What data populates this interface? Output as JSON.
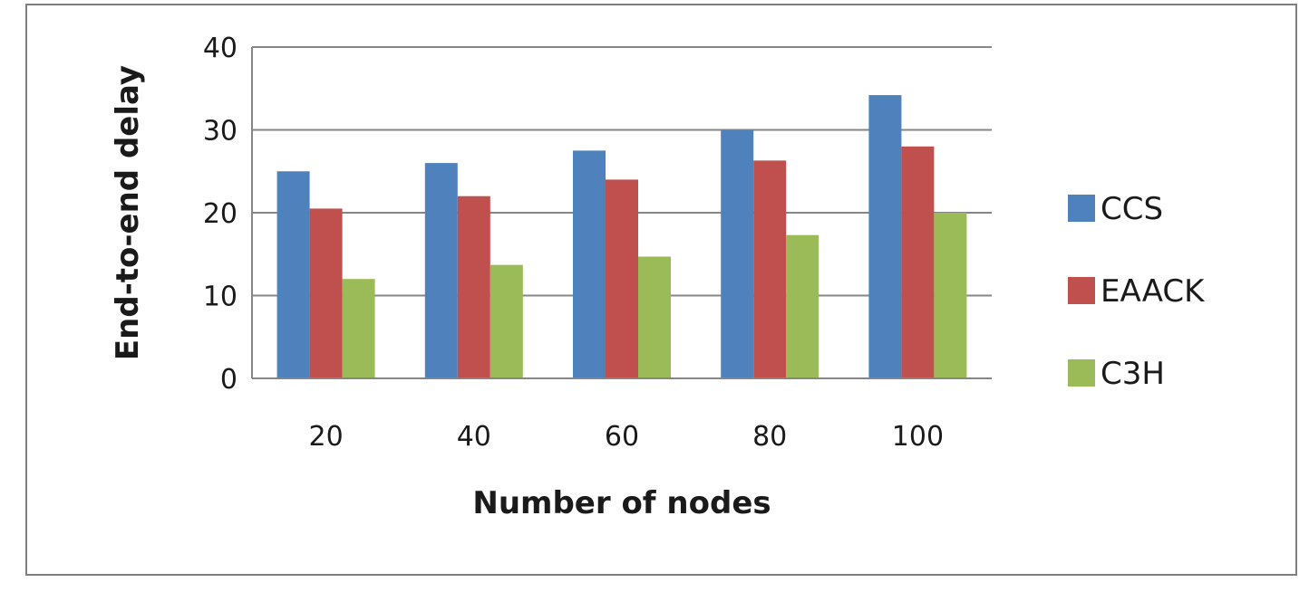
{
  "chart_data": {
    "type": "bar",
    "title": "",
    "xlabel": "Number of nodes",
    "ylabel": "End-to-end delay",
    "categories": [
      "20",
      "40",
      "60",
      "80",
      "100"
    ],
    "yticks": [
      "0",
      "10",
      "20",
      "30",
      "40"
    ],
    "ylim": [
      0,
      40
    ],
    "grid": true,
    "legend_position": "right",
    "series": [
      {
        "name": "CCS",
        "color": "#4f81bd",
        "values": [
          25,
          26,
          27.5,
          30,
          34.2
        ]
      },
      {
        "name": "EAACK",
        "color": "#c0504d",
        "values": [
          20.5,
          22,
          24,
          26.3,
          28
        ]
      },
      {
        "name": "C3H",
        "color": "#9bbb59",
        "values": [
          12,
          13.7,
          14.7,
          17.3,
          20
        ]
      }
    ]
  }
}
